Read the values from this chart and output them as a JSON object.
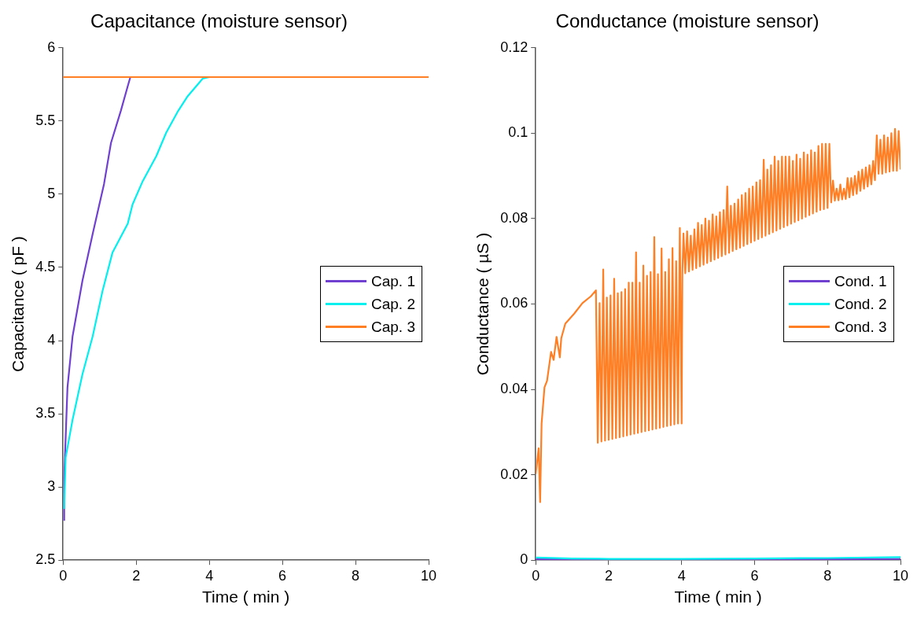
{
  "chart_data": [
    {
      "type": "line",
      "title": "Capacitance (moisture sensor)",
      "xlabel": "Time ( min )",
      "ylabel": "Capacitance ( pF )",
      "xlim": [
        0,
        10
      ],
      "xticks": [
        0,
        2,
        4,
        6,
        8,
        10
      ],
      "ylim": [
        2.5,
        6
      ],
      "yticks": [
        2.5,
        3,
        3.5,
        4,
        4.5,
        5,
        5.5,
        6
      ],
      "grid": false,
      "legend": "right",
      "marker": "none",
      "line_style": "solid",
      "series": [
        {
          "name": "Cap. 1",
          "color": "#7040d0",
          "x": [
            0.03,
            0.03,
            0.12,
            0.26,
            0.53,
            0.81,
            1.12,
            1.31,
            1.58,
            1.76,
            1.84
          ],
          "values": [
            2.77,
            3.06,
            3.68,
            4.03,
            4.41,
            4.73,
            5.07,
            5.35,
            5.57,
            5.73,
            5.8
          ]
        },
        {
          "name": "Cap. 2",
          "color": "#00f0f0",
          "x": [
            0.03,
            0.07,
            0.26,
            0.53,
            0.81,
            1.08,
            1.35,
            1.77,
            1.9,
            2.18,
            2.55,
            2.82,
            3.15,
            3.41,
            3.82,
            4.0
          ],
          "values": [
            2.85,
            3.2,
            3.46,
            3.77,
            4.03,
            4.34,
            4.6,
            4.8,
            4.93,
            5.09,
            5.26,
            5.42,
            5.57,
            5.67,
            5.79,
            5.8
          ]
        },
        {
          "name": "Cap. 3",
          "color": "#ff7f24",
          "x": [
            0,
            10
          ],
          "values": [
            5.8,
            5.8
          ]
        }
      ]
    },
    {
      "type": "line",
      "title": "Conductance (moisture sensor)",
      "xlabel": "Time ( min )",
      "ylabel": "Conductance ( µS )",
      "xlim": [
        0,
        10
      ],
      "xticks": [
        0,
        2,
        4,
        6,
        8,
        10
      ],
      "ylim": [
        0,
        0.12
      ],
      "yticks": [
        0,
        0.02,
        0.04,
        0.06,
        0.08,
        0.1,
        0.12
      ],
      "grid": false,
      "legend": "right",
      "marker": "none",
      "line_style": "solid",
      "series": [
        {
          "name": "Cond. 1",
          "color": "#7040d0",
          "x": [
            0,
            2,
            4,
            6,
            8,
            10
          ],
          "values": [
            0.0002,
            0.0002,
            0.0002,
            0.0002,
            0.0002,
            0.0003
          ]
        },
        {
          "name": "Cond. 2",
          "color": "#00f0f0",
          "x": [
            0,
            1,
            2,
            4,
            6,
            8,
            10
          ],
          "values": [
            0.0006,
            0.0004,
            0.0003,
            0.0003,
            0.0004,
            0.0005,
            0.0007
          ]
        },
        {
          "name": "Cond. 3",
          "color": "#ff7f24",
          "x": [
            0,
            0.08,
            0.12,
            0.16,
            0.24,
            0.31,
            0.42,
            0.49,
            0.57,
            0.66,
            0.7,
            0.81,
            1.05,
            1.28,
            1.51,
            1.65,
            1.7,
            1.75,
            1.8,
            1.85,
            1.9,
            1.95,
            2.0,
            2.05,
            2.1,
            2.15,
            2.2,
            2.25,
            2.3,
            2.35,
            2.4,
            2.45,
            2.5,
            2.55,
            2.6,
            2.65,
            2.7,
            2.75,
            2.8,
            2.85,
            2.9,
            2.95,
            3.0,
            3.05,
            3.1,
            3.15,
            3.2,
            3.25,
            3.3,
            3.35,
            3.4,
            3.45,
            3.5,
            3.55,
            3.6,
            3.65,
            3.7,
            3.75,
            3.8,
            3.85,
            3.9,
            3.95,
            4.0,
            4.02,
            4.05,
            4.1,
            4.15,
            4.2,
            4.25,
            4.3,
            4.35,
            4.4,
            4.45,
            4.5,
            4.55,
            4.6,
            4.65,
            4.7,
            4.75,
            4.8,
            4.85,
            4.9,
            4.95,
            5.0,
            5.05,
            5.1,
            5.15,
            5.2,
            5.25,
            5.3,
            5.35,
            5.4,
            5.45,
            5.5,
            5.55,
            5.6,
            5.65,
            5.7,
            5.75,
            5.8,
            5.85,
            5.9,
            5.95,
            6.0,
            6.05,
            6.1,
            6.15,
            6.2,
            6.25,
            6.3,
            6.35,
            6.4,
            6.45,
            6.5,
            6.55,
            6.6,
            6.65,
            6.7,
            6.75,
            6.8,
            6.85,
            6.9,
            6.95,
            7.0,
            7.05,
            7.1,
            7.15,
            7.2,
            7.25,
            7.3,
            7.35,
            7.4,
            7.45,
            7.5,
            7.55,
            7.6,
            7.65,
            7.7,
            7.75,
            7.8,
            7.85,
            7.9,
            7.95,
            8.0,
            8.05,
            8.1,
            8.15,
            8.2,
            8.25,
            8.3,
            8.35,
            8.4,
            8.45,
            8.5,
            8.55,
            8.6,
            8.65,
            8.7,
            8.75,
            8.8,
            8.85,
            8.9,
            8.95,
            9.0,
            9.05,
            9.1,
            9.15,
            9.2,
            9.25,
            9.3,
            9.35,
            9.4,
            9.45,
            9.5,
            9.55,
            9.6,
            9.65,
            9.7,
            9.75,
            9.8,
            9.85,
            9.9,
            9.95,
            10.0
          ],
          "values": [
            0.0202,
            0.0262,
            0.0136,
            0.032,
            0.0405,
            0.042,
            0.0488,
            0.0469,
            0.0523,
            0.0475,
            0.052,
            0.0554,
            0.0577,
            0.0602,
            0.0618,
            0.0632,
            0.0275,
            0.0602,
            0.0278,
            0.0681,
            0.028,
            0.0615,
            0.0282,
            0.062,
            0.0284,
            0.0659,
            0.0286,
            0.0625,
            0.0288,
            0.0628,
            0.029,
            0.0635,
            0.0292,
            0.065,
            0.0294,
            0.065,
            0.0296,
            0.0721,
            0.0298,
            0.065,
            0.03,
            0.069,
            0.0302,
            0.0666,
            0.0304,
            0.0675,
            0.0306,
            0.0757,
            0.0308,
            0.067,
            0.031,
            0.073,
            0.0312,
            0.0675,
            0.0314,
            0.0705,
            0.0316,
            0.0731,
            0.0318,
            0.07,
            0.032,
            0.0778,
            0.032,
            0.0672,
            0.0765,
            0.0672,
            0.077,
            0.0676,
            0.076,
            0.068,
            0.0775,
            0.0684,
            0.079,
            0.0688,
            0.0785,
            0.0692,
            0.08,
            0.0696,
            0.0795,
            0.07,
            0.081,
            0.0704,
            0.0805,
            0.0708,
            0.0815,
            0.0712,
            0.082,
            0.0716,
            0.0875,
            0.072,
            0.083,
            0.0724,
            0.0835,
            0.0728,
            0.0845,
            0.0732,
            0.0855,
            0.0736,
            0.086,
            0.074,
            0.087,
            0.0744,
            0.0875,
            0.0748,
            0.0885,
            0.0752,
            0.089,
            0.0756,
            0.0938,
            0.076,
            0.0915,
            0.0764,
            0.0925,
            0.0768,
            0.0945,
            0.0772,
            0.0935,
            0.0776,
            0.0945,
            0.078,
            0.0945,
            0.0784,
            0.0945,
            0.0788,
            0.0935,
            0.0792,
            0.095,
            0.0796,
            0.094,
            0.08,
            0.0955,
            0.0804,
            0.095,
            0.0808,
            0.096,
            0.0812,
            0.0955,
            0.0816,
            0.097,
            0.082,
            0.0975,
            0.0822,
            0.0975,
            0.0825,
            0.0975,
            0.0838,
            0.0889,
            0.0842,
            0.087,
            0.0843,
            0.088,
            0.0845,
            0.087,
            0.0846,
            0.0895,
            0.085,
            0.0895,
            0.0855,
            0.09,
            0.0858,
            0.091,
            0.0865,
            0.0915,
            0.087,
            0.092,
            0.0875,
            0.0925,
            0.088,
            0.0935,
            0.089,
            0.0995,
            0.0905,
            0.0985,
            0.0905,
            0.0995,
            0.0908,
            0.099,
            0.091,
            0.1,
            0.0912,
            0.101,
            0.0912,
            0.1005,
            0.0915
          ]
        }
      ]
    }
  ]
}
